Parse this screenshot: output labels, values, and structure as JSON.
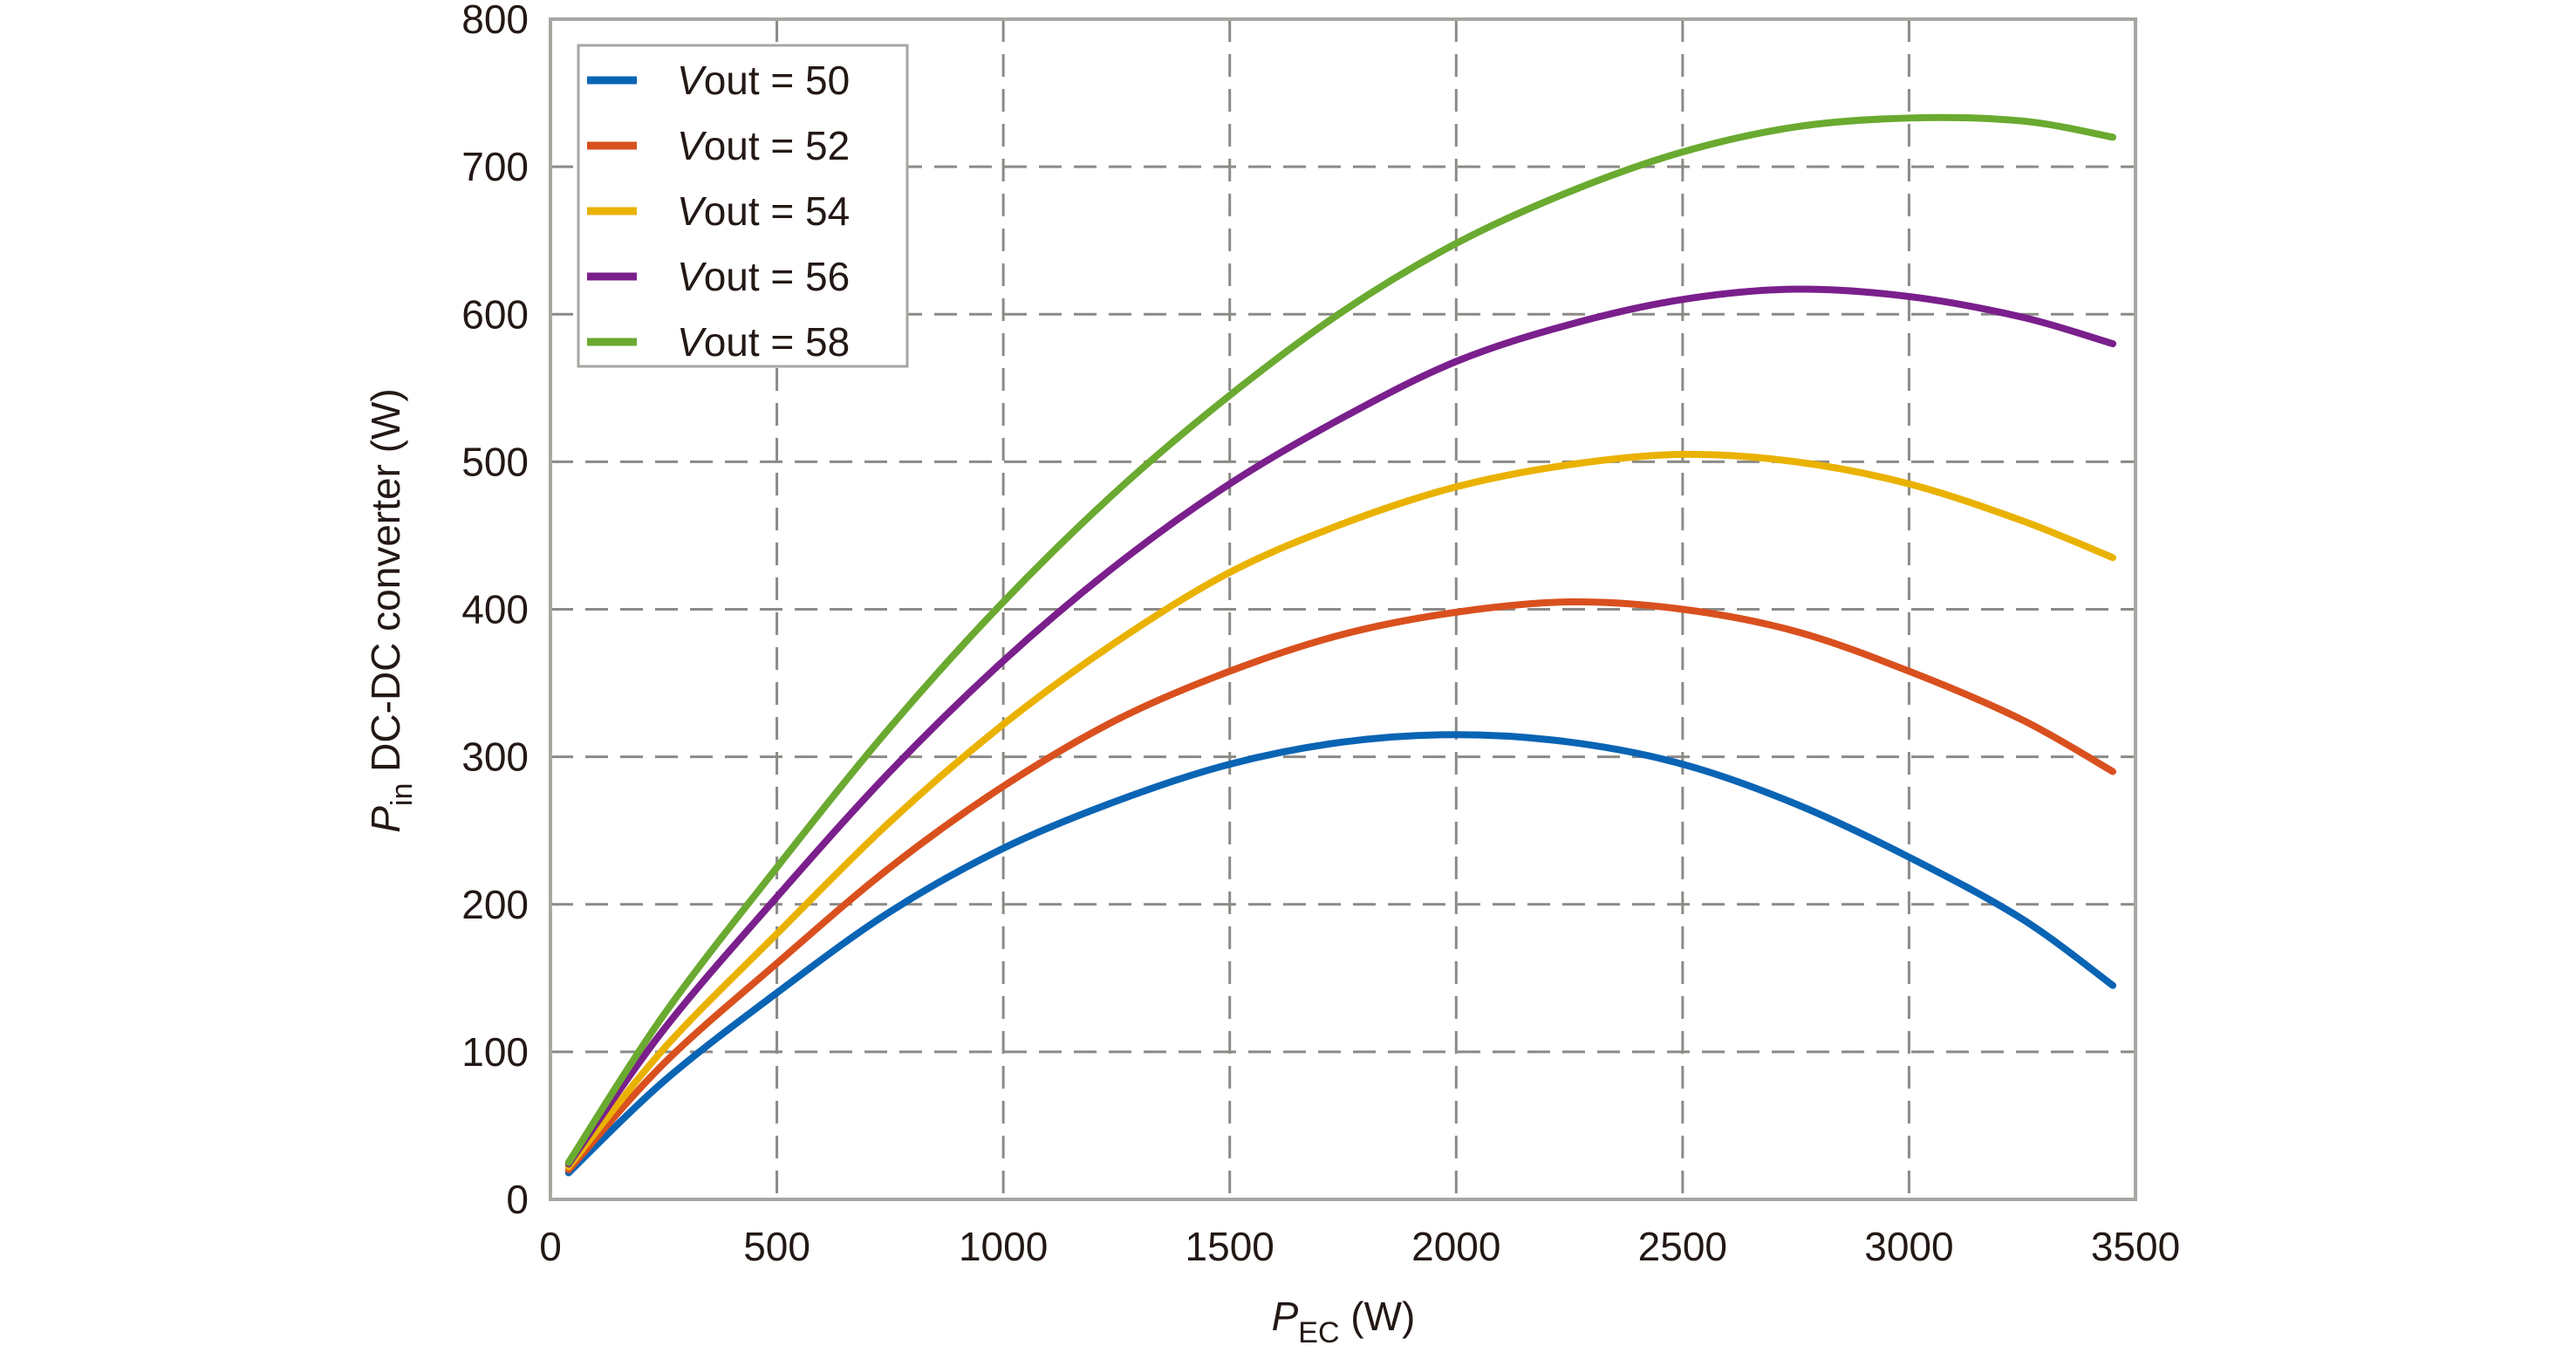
{
  "chart_data": {
    "type": "line",
    "xlabel": {
      "main": "P",
      "sub": "EC",
      "unit": " (W)"
    },
    "ylabel": {
      "main": "P",
      "sub": "in",
      "rest": " DC-DC converter (W)"
    },
    "xlim": [
      0,
      3500
    ],
    "ylim": [
      0,
      800
    ],
    "xticks": [
      0,
      500,
      1000,
      1500,
      2000,
      2500,
      3000,
      3500
    ],
    "yticks": [
      0,
      100,
      200,
      300,
      400,
      500,
      600,
      700,
      800
    ],
    "grid": true,
    "legend_position": "top-left",
    "series": [
      {
        "name": "Vout = 50",
        "label_italic": "V",
        "label_rest": "out = 50",
        "color": "#0a64b4",
        "x": [
          40,
          250,
          500,
          750,
          1000,
          1250,
          1500,
          1750,
          2000,
          2250,
          2500,
          2750,
          3000,
          3250,
          3450
        ],
        "y": [
          18,
          80,
          140,
          195,
          238,
          270,
          295,
          310,
          315,
          310,
          295,
          268,
          232,
          190,
          145
        ]
      },
      {
        "name": "Vout = 52",
        "label_italic": "V",
        "label_rest": "out = 52",
        "color": "#d9501e",
        "x": [
          40,
          250,
          500,
          750,
          1000,
          1250,
          1500,
          1750,
          2000,
          2250,
          2500,
          2750,
          3000,
          3250,
          3450
        ],
        "y": [
          20,
          92,
          160,
          225,
          280,
          325,
          358,
          383,
          398,
          405,
          400,
          385,
          358,
          325,
          290
        ]
      },
      {
        "name": "Vout = 54",
        "label_italic": "V",
        "label_rest": "out = 54",
        "color": "#eab200",
        "x": [
          40,
          250,
          500,
          750,
          1000,
          1250,
          1500,
          1750,
          2000,
          2250,
          2500,
          2750,
          3000,
          3250,
          3450
        ],
        "y": [
          22,
          102,
          180,
          256,
          322,
          378,
          425,
          458,
          483,
          498,
          505,
          500,
          485,
          460,
          435
        ]
      },
      {
        "name": "Vout = 56",
        "label_italic": "V",
        "label_rest": "out = 56",
        "color": "#7a1f8c",
        "x": [
          40,
          250,
          500,
          750,
          1000,
          1250,
          1500,
          1750,
          2000,
          2250,
          2500,
          2750,
          3000,
          3250,
          3450
        ],
        "y": [
          24,
          115,
          205,
          290,
          365,
          430,
          485,
          530,
          568,
          593,
          610,
          617,
          612,
          598,
          580
        ]
      },
      {
        "name": "Vout = 58",
        "label_italic": "V",
        "label_rest": "out = 58",
        "color": "#6aaa30",
        "x": [
          40,
          250,
          500,
          750,
          1000,
          1250,
          1500,
          1750,
          2000,
          2250,
          2500,
          2750,
          3000,
          3250,
          3450
        ],
        "y": [
          25,
          125,
          225,
          320,
          405,
          480,
          545,
          602,
          648,
          683,
          710,
          727,
          733,
          731,
          720
        ]
      }
    ]
  }
}
